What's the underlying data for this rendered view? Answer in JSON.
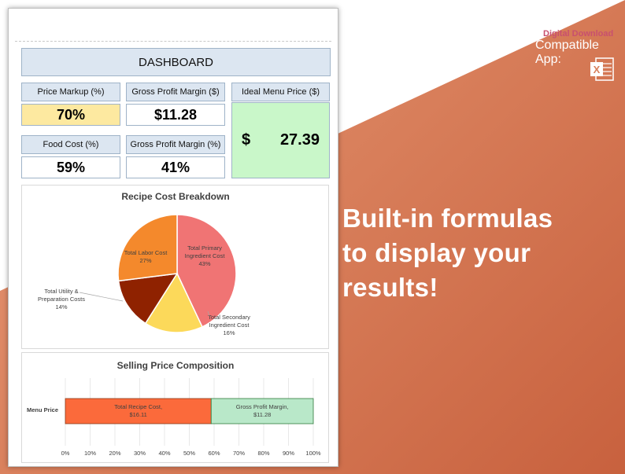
{
  "dashboard": {
    "title": "DASHBOARD",
    "price_markup": {
      "label": "Price Markup (%)",
      "value": "70%"
    },
    "gp_margin_dollar": {
      "label": "Gross Profit Margin ($)",
      "value": "$11.28"
    },
    "ideal_price": {
      "label": "Ideal Menu Price ($)",
      "currency": "$",
      "value": "27.39"
    },
    "food_cost": {
      "label": "Food Cost (%)",
      "value": "59%"
    },
    "gp_margin_pct": {
      "label": "Gross Profit Margin (%)",
      "value": "41%"
    }
  },
  "colors": {
    "accent_yellow": "#fde9a0",
    "ideal_green": "#c9f7c9",
    "header_blue": "#dce6f1",
    "slice_primary": "#f07474",
    "slice_secondary": "#fcd95a",
    "slice_utility": "#8f2200",
    "slice_labor": "#f4892c",
    "bar_recipe": "#fb6a3b",
    "bar_margin": "#b9e8c9"
  },
  "promo": {
    "line1": "Built-in formulas",
    "line2": "to display your results!",
    "download": "Digital Download",
    "compatible": "Compatible App:",
    "app_icon": "excel-icon"
  },
  "chart_data": [
    {
      "type": "pie",
      "title": "Recipe Cost Breakdown",
      "slices": [
        {
          "name": "Total Primary Ingredient Cost",
          "label_lines": [
            "Total Primary",
            "Ingredient Cost",
            "43%"
          ],
          "value": 43
        },
        {
          "name": "Total Secondary Ingredient Cost",
          "label_lines": [
            "Total Secondary",
            "Ingredient Cost",
            "16%"
          ],
          "value": 16
        },
        {
          "name": "Total Utility & Preparation Costs",
          "label_lines": [
            "Total Utility &",
            "Preparation  Costs",
            "14%"
          ],
          "value": 14
        },
        {
          "name": "Total Labor Cost",
          "label_lines": [
            "Total Labor Cost",
            "27%"
          ],
          "value": 27
        }
      ]
    },
    {
      "type": "bar",
      "title": "Selling Price Composition",
      "categories": [
        "Menu Price"
      ],
      "orientation": "horizontal-stacked-100",
      "series": [
        {
          "name": "Total Recipe Cost",
          "label_lines": [
            "Total Recipe Cost,",
            "$16.11"
          ],
          "value": 16.11
        },
        {
          "name": "Gross Profit Margin",
          "label_lines": [
            "Gross Profit Margin,",
            "$11.28"
          ],
          "value": 11.28
        }
      ],
      "x_ticks": [
        "0%",
        "10%",
        "20%",
        "30%",
        "40%",
        "50%",
        "60%",
        "70%",
        "80%",
        "90%",
        "100%"
      ],
      "xlim": [
        0,
        100
      ],
      "grid": true
    }
  ]
}
